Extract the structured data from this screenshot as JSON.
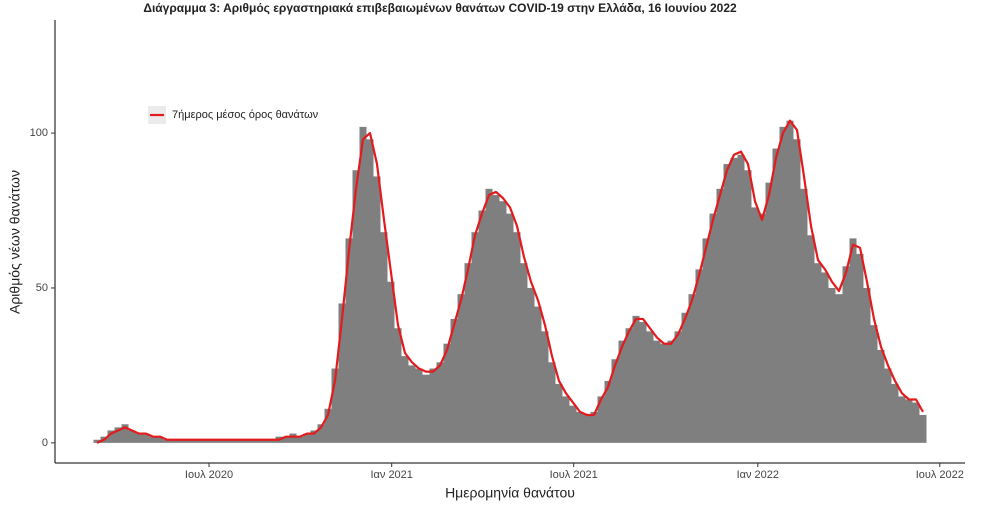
{
  "chart_data": {
    "type": "bar-line",
    "title": "Διάγραμμα 3: Αριθμός εργαστηριακά επιβεβαιωμένων θανάτων COVID-19 στην Ελλάδα, 16 Ιουνίου 2022",
    "xlabel": "Ημερομηνία θανάτου",
    "ylabel": "Αριθμός νέων θανάτων",
    "x": [
      0,
      1,
      2,
      3,
      4,
      5,
      6,
      7,
      8,
      9,
      10,
      11,
      12,
      13,
      14,
      15,
      16,
      17,
      18,
      19,
      20,
      21,
      22,
      23,
      24,
      25,
      26,
      27,
      28,
      29,
      30,
      31,
      32,
      33,
      34,
      35,
      36,
      37,
      38,
      39,
      40,
      41,
      42,
      43,
      44,
      45,
      46,
      47,
      48,
      49,
      50,
      51,
      52,
      53,
      54,
      55,
      56,
      57,
      58,
      59,
      60,
      61,
      62,
      63,
      64,
      65,
      66,
      67,
      68,
      69,
      70,
      71,
      72,
      73,
      74,
      75,
      76,
      77,
      78,
      79,
      80,
      81,
      82,
      83,
      84,
      85,
      86,
      87,
      88,
      89,
      90,
      91,
      92,
      93,
      94,
      95,
      96,
      97,
      98,
      99,
      100,
      101,
      102,
      103,
      104,
      105,
      106,
      107,
      108,
      109,
      110,
      111,
      112,
      113,
      114,
      115,
      116,
      117,
      118
    ],
    "bars": {
      "color": "#7f7f7f",
      "values": [
        1,
        2,
        4,
        5,
        6,
        4,
        3,
        3,
        2,
        2,
        1,
        1,
        1,
        1,
        1,
        1,
        1,
        1,
        1,
        1,
        1,
        1,
        1,
        1,
        1,
        1,
        2,
        2,
        3,
        2,
        3,
        4,
        6,
        11,
        24,
        45,
        66,
        88,
        102,
        98,
        86,
        68,
        52,
        37,
        28,
        25,
        24,
        22,
        24,
        26,
        32,
        40,
        48,
        58,
        68,
        75,
        82,
        80,
        78,
        74,
        68,
        58,
        50,
        44,
        36,
        26,
        19,
        15,
        12,
        10,
        9,
        10,
        15,
        20,
        27,
        33,
        37,
        41,
        39,
        36,
        33,
        32,
        33,
        36,
        42,
        48,
        56,
        66,
        74,
        82,
        90,
        92,
        93,
        88,
        76,
        74,
        84,
        95,
        102,
        104,
        98,
        82,
        67,
        58,
        55,
        50,
        48,
        57,
        66,
        61,
        50,
        38,
        30,
        24,
        19,
        15,
        14,
        13,
        9
      ]
    },
    "series": [
      {
        "name": "7ήμερος μέσος όρος θανάτων",
        "color": "#e41a1c",
        "values": [
          0,
          1,
          3,
          4,
          5,
          4,
          3,
          3,
          2,
          2,
          1,
          1,
          1,
          1,
          1,
          1,
          1,
          1,
          1,
          1,
          1,
          1,
          1,
          1,
          1,
          1,
          1,
          2,
          2,
          2,
          3,
          3,
          5,
          9,
          20,
          40,
          62,
          82,
          98,
          100,
          90,
          72,
          55,
          38,
          29,
          26,
          24,
          23,
          23,
          25,
          30,
          38,
          46,
          56,
          67,
          74,
          80,
          81,
          79,
          76,
          70,
          60,
          52,
          46,
          38,
          28,
          20,
          16,
          13,
          10,
          9,
          9,
          14,
          18,
          25,
          31,
          36,
          40,
          40,
          37,
          34,
          32,
          32,
          35,
          40,
          46,
          54,
          63,
          72,
          80,
          88,
          93,
          94,
          90,
          78,
          72,
          80,
          92,
          100,
          104,
          101,
          86,
          70,
          59,
          56,
          52,
          49,
          55,
          64,
          63,
          52,
          40,
          31,
          25,
          20,
          16,
          14,
          14,
          10
        ]
      }
    ],
    "xlim": [
      -6,
      124
    ],
    "xticks": [
      {
        "value": 16,
        "label": "Ιουλ 2020"
      },
      {
        "value": 42.1,
        "label": "Ιαν 2021"
      },
      {
        "value": 68.1,
        "label": "Ιουλ 2021"
      },
      {
        "value": 94.4,
        "label": "Ιαν 2022"
      },
      {
        "value": 120.4,
        "label": "Ιουλ 2022"
      }
    ],
    "ylim": [
      -6.5,
      136.5
    ],
    "yticks": [
      0,
      50,
      100
    ],
    "legend": "top-left"
  }
}
